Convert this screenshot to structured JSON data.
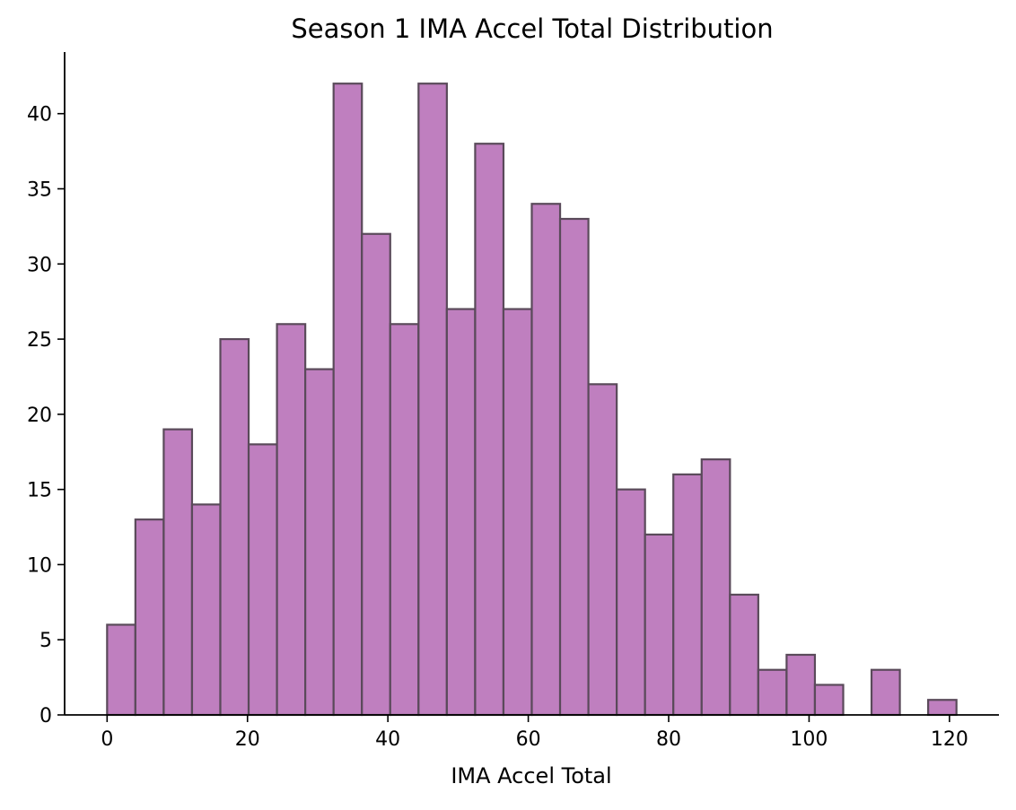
{
  "chart_data": {
    "type": "histogram",
    "title": "Season 1 IMA Accel Total Distribution",
    "xlabel": "IMA Accel Total",
    "ylabel": "",
    "xlim": [
      -6.05,
      127.05
    ],
    "ylim": [
      0,
      44.1
    ],
    "x_ticks": [
      0,
      20,
      40,
      60,
      80,
      100,
      120
    ],
    "y_ticks": [
      0,
      5,
      10,
      15,
      20,
      25,
      30,
      35,
      40
    ],
    "bin_start": 0,
    "bin_width": 4.0333,
    "bins": 30,
    "counts": [
      6,
      13,
      19,
      14,
      25,
      18,
      26,
      23,
      42,
      32,
      26,
      42,
      27,
      38,
      27,
      34,
      33,
      22,
      15,
      12,
      16,
      17,
      8,
      3,
      4,
      2,
      0,
      3,
      0,
      1
    ],
    "bar_color": "#bf7fbf",
    "edge_color": "#5a4a5a",
    "grid": false
  }
}
